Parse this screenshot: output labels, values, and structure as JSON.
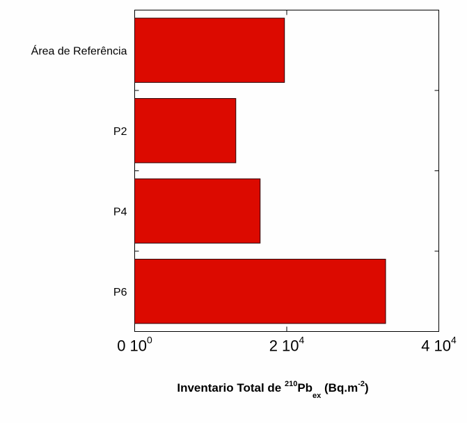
{
  "chart_data": {
    "type": "bar",
    "orientation": "horizontal",
    "categories": [
      "Área de Referência",
      "P2",
      "P4",
      "P6"
    ],
    "values": [
      19700,
      13300,
      16500,
      33000
    ],
    "xlim": [
      0,
      40000
    ],
    "x_ticks": [
      {
        "value": 0,
        "mantissa": "0 10",
        "exponent": "0"
      },
      {
        "value": 20000,
        "mantissa": "2 10",
        "exponent": "4"
      },
      {
        "value": 40000,
        "mantissa": "4 10",
        "exponent": "4"
      }
    ],
    "xlabel": {
      "prefix": "Inventario Total de ",
      "sup_mass": "210",
      "element": "Pb",
      "subscript": "ex",
      "unit_open": " (Bq.m",
      "unit_exp": "-2",
      "unit_close": ")"
    },
    "title": "",
    "grid": false,
    "colors": {
      "bar_fill": "#dc0a00",
      "bar_stroke": "#2a0000",
      "axis": "#000000"
    }
  }
}
